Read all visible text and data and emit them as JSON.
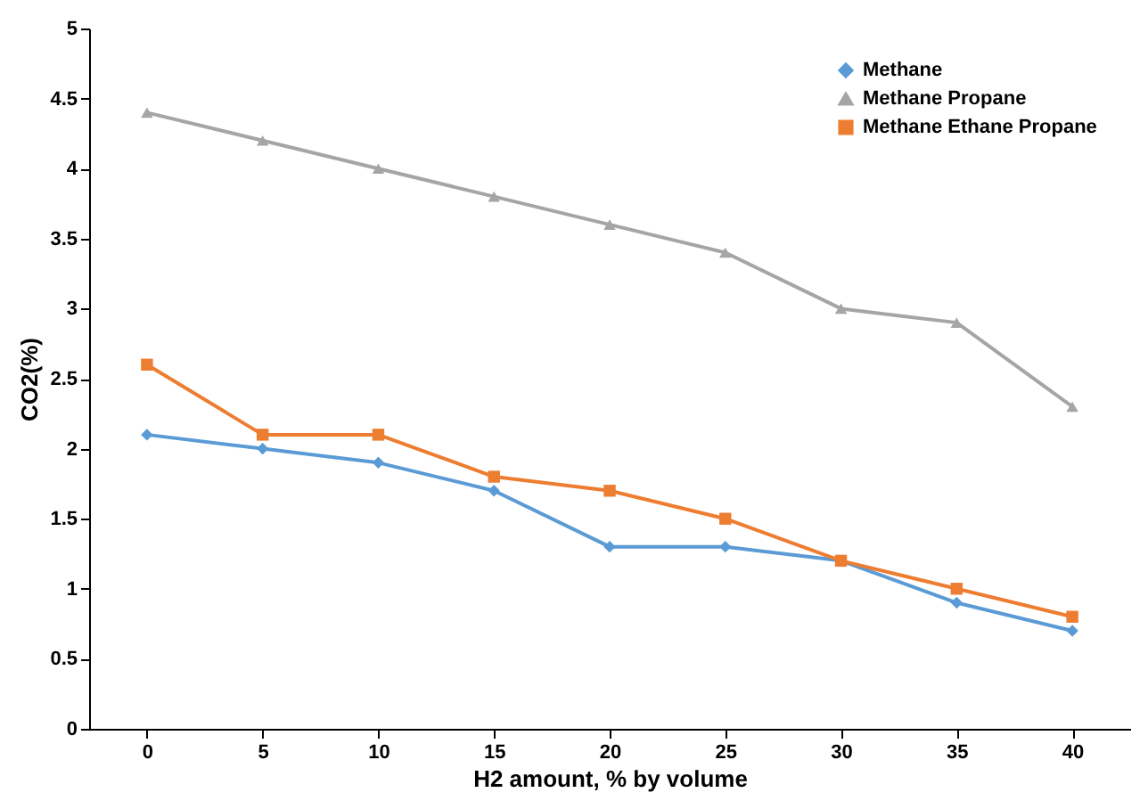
{
  "chart_data": {
    "type": "line",
    "xlabel": "H2 amount, % by volume",
    "ylabel": "CO2(%)",
    "categories": [
      "0",
      "5",
      "10",
      "15",
      "20",
      "25",
      "30",
      "35",
      "40"
    ],
    "series": [
      {
        "name": "Methane",
        "color": "#5b9bd5",
        "marker": "diamond",
        "values": [
          2.1,
          2.0,
          1.9,
          1.7,
          1.3,
          1.3,
          1.2,
          0.9,
          0.7
        ]
      },
      {
        "name": "Methane Propane",
        "color": "#a5a5a5",
        "marker": "triangle",
        "values": [
          4.4,
          4.2,
          4.0,
          3.8,
          3.6,
          3.4,
          3.0,
          2.9,
          2.3
        ]
      },
      {
        "name": "Methane Ethane Propane",
        "color": "#ed7d31",
        "marker": "square",
        "values": [
          2.6,
          2.1,
          2.1,
          1.8,
          1.7,
          1.5,
          1.2,
          1.0,
          0.8
        ]
      }
    ],
    "ylim": [
      0,
      5
    ],
    "yticks": [
      0,
      0.5,
      1,
      1.5,
      2,
      2.5,
      3,
      3.5,
      4,
      4.5,
      5
    ],
    "grid": false,
    "legend": "top right",
    "line_style": "solid"
  }
}
